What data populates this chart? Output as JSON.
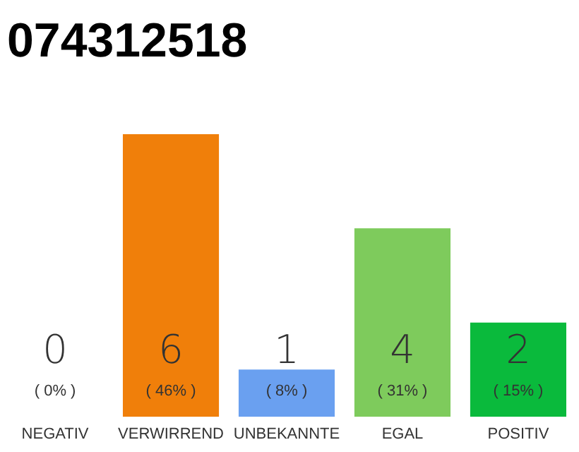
{
  "chart_data": {
    "type": "bar",
    "title": "074312518",
    "categories": [
      "NEGATIV",
      "VERWIRREND",
      "UNBEKANNTE",
      "EGAL",
      "POSITIV"
    ],
    "values": [
      0,
      6,
      1,
      4,
      2
    ],
    "colors": [
      "#555555",
      "#f07f0a",
      "#6aa0f0",
      "#7ecb5c",
      "#0aba3c"
    ],
    "data_labels": true,
    "annotations": [
      "( 0% )",
      "( 46% )",
      "( 8% )",
      "( 31% )",
      "( 15% )"
    ]
  }
}
